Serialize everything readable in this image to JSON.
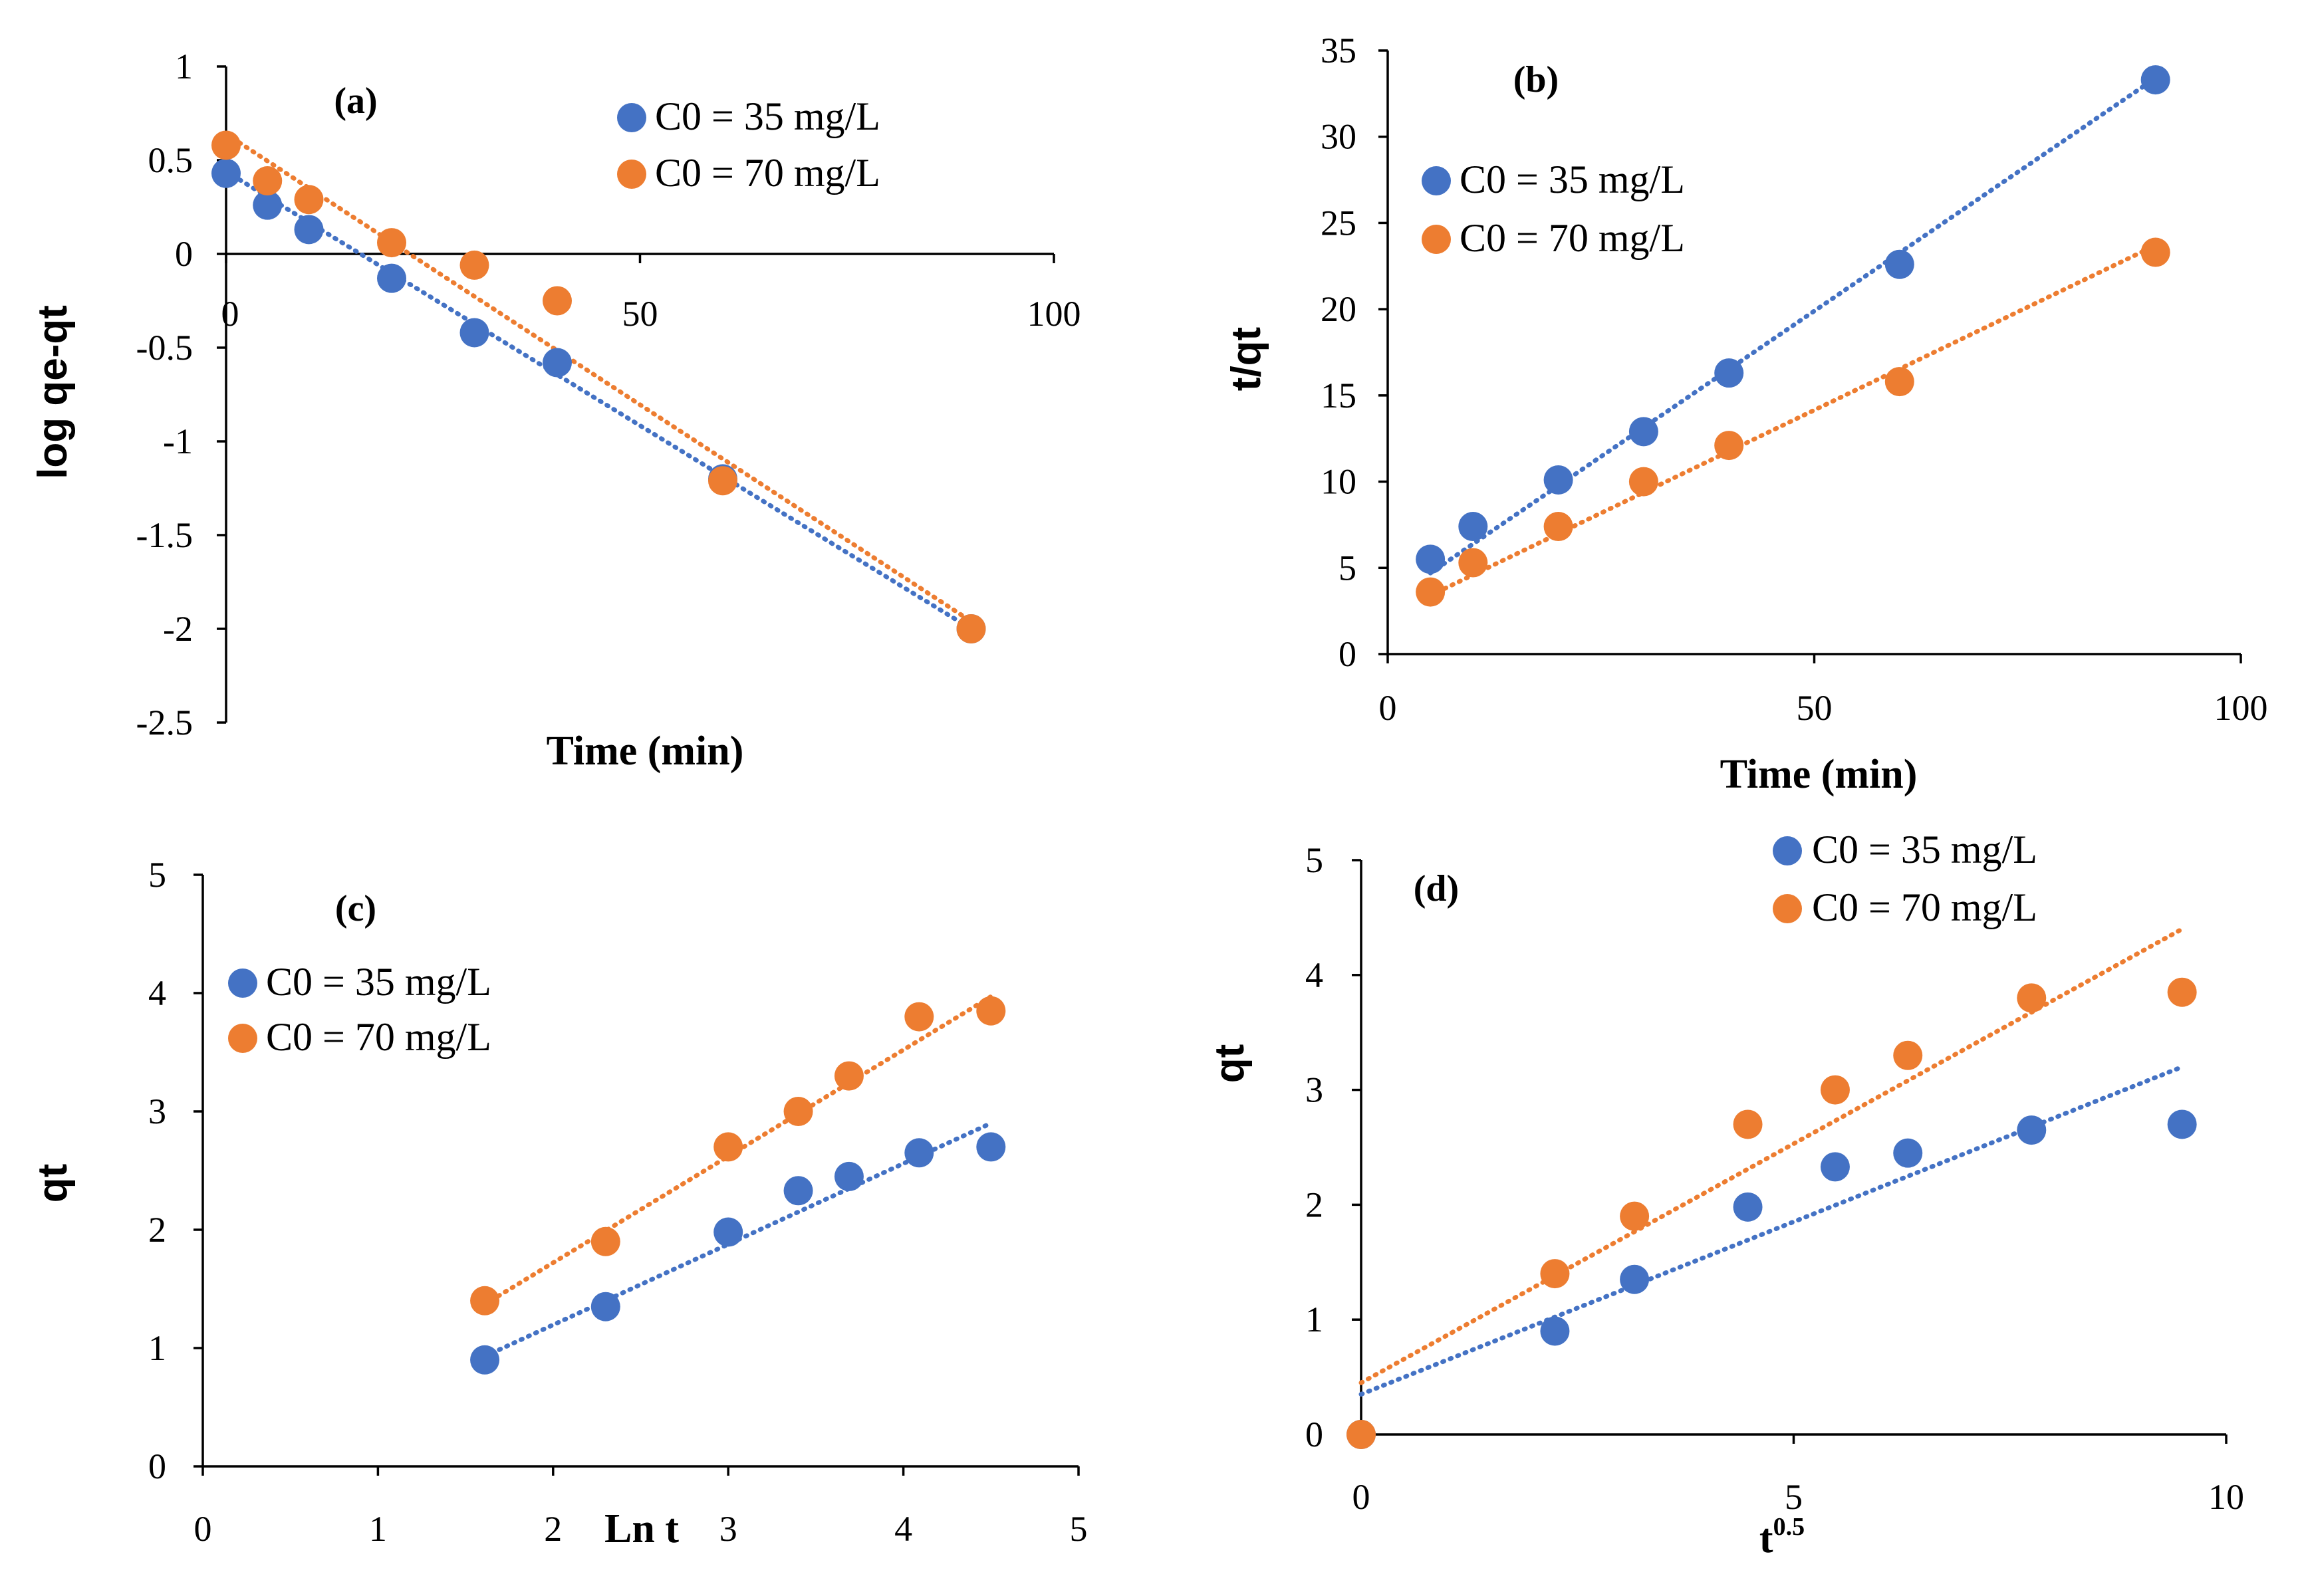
{
  "colors": {
    "series1": "#4472c4",
    "series2": "#ed7d31"
  },
  "chart_data": [
    {
      "type": "scatter",
      "title": "(a)",
      "xlabel": "Time (min)",
      "ylabel": "log qe-qt",
      "xlim": [
        0,
        100
      ],
      "ylim": [
        -2.5,
        1
      ],
      "xticks": [
        0,
        50,
        100
      ],
      "yticks": [
        1,
        0.5,
        0,
        -0.5,
        -1,
        -1.5,
        -2,
        -2.5
      ],
      "xaxis_at_zero": true,
      "legend_position": "top-right",
      "series": [
        {
          "name": "C0 = 35 mg/L",
          "x": [
            0,
            5,
            10,
            20,
            30,
            40,
            60,
            90
          ],
          "y": [
            0.43,
            0.26,
            0.13,
            -0.13,
            -0.42,
            -0.58,
            -1.2,
            -2.0
          ],
          "trendline": [
            [
              0,
              0.44
            ],
            [
              90,
              -2.0
            ]
          ]
        },
        {
          "name": "C0 = 70 mg/L",
          "x": [
            0,
            5,
            10,
            20,
            30,
            40,
            60,
            90
          ],
          "y": [
            0.58,
            0.39,
            0.29,
            0.06,
            -0.06,
            -0.25,
            -1.21,
            -2.0
          ],
          "trendline": [
            [
              0,
              0.64
            ],
            [
              90,
              -1.96
            ]
          ]
        }
      ]
    },
    {
      "type": "scatter",
      "title": "(b)",
      "xlabel": "Time (min)",
      "ylabel": "t/qt",
      "xlim": [
        0,
        100
      ],
      "ylim": [
        0,
        35
      ],
      "xticks": [
        0,
        50,
        100
      ],
      "yticks": [
        0,
        5,
        10,
        15,
        20,
        25,
        30,
        35
      ],
      "legend_position": "top-left",
      "series": [
        {
          "name": "C0 = 35 mg/L",
          "x": [
            5,
            10,
            20,
            30,
            40,
            60,
            90
          ],
          "y": [
            5.5,
            7.4,
            10.1,
            12.9,
            16.3,
            22.6,
            33.3
          ],
          "trendline": [
            [
              5,
              4.7
            ],
            [
              90,
              33.4
            ]
          ]
        },
        {
          "name": "C0 = 70 mg/L",
          "x": [
            5,
            10,
            20,
            30,
            40,
            60,
            90
          ],
          "y": [
            3.6,
            5.3,
            7.4,
            10.0,
            12.1,
            15.8,
            23.3
          ],
          "trendline": [
            [
              5,
              3.4
            ],
            [
              90,
              23.7
            ]
          ]
        }
      ]
    },
    {
      "type": "scatter",
      "title": "(c)",
      "xlabel": "Ln t",
      "ylabel": "qt",
      "xlim": [
        0,
        5
      ],
      "ylim": [
        0,
        5
      ],
      "xticks": [
        0,
        1,
        2,
        3,
        4,
        5
      ],
      "yticks": [
        0,
        1,
        2,
        3,
        4,
        5
      ],
      "legend_position": "top-left",
      "series": [
        {
          "name": "C0 = 35 mg/L",
          "x": [
            1.61,
            2.3,
            3.0,
            3.4,
            3.69,
            4.09,
            4.5
          ],
          "y": [
            0.9,
            1.35,
            1.98,
            2.33,
            2.45,
            2.65,
            2.7
          ],
          "trendline": [
            [
              1.61,
              0.93
            ],
            [
              4.5,
              2.9
            ]
          ]
        },
        {
          "name": "C0 = 70 mg/L",
          "x": [
            1.61,
            2.3,
            3.0,
            3.4,
            3.69,
            4.09,
            4.5
          ],
          "y": [
            1.4,
            1.9,
            2.7,
            3.0,
            3.3,
            3.8,
            3.85
          ],
          "trendline": [
            [
              1.61,
              1.37
            ],
            [
              4.5,
              3.97
            ]
          ]
        }
      ]
    },
    {
      "type": "scatter",
      "title": "(d)",
      "xlabel": "t",
      "xlabel_sup": "0.5",
      "ylabel": "qt",
      "xlim": [
        0,
        10
      ],
      "ylim": [
        0,
        5
      ],
      "xticks": [
        0,
        5,
        10
      ],
      "yticks": [
        0,
        1,
        2,
        3,
        4,
        5
      ],
      "legend_position": "top-right",
      "series": [
        {
          "name": "C0 = 35 mg/L",
          "x": [
            0,
            2.24,
            3.16,
            4.47,
            5.48,
            6.32,
            7.75,
            9.49
          ],
          "y": [
            0,
            0.9,
            1.35,
            1.98,
            2.33,
            2.45,
            2.65,
            2.7
          ],
          "trendline": [
            [
              0,
              0.35
            ],
            [
              9.49,
              3.2
            ]
          ]
        },
        {
          "name": "C0 = 70 mg/L",
          "x": [
            0,
            2.24,
            3.16,
            4.47,
            5.48,
            6.32,
            7.75,
            9.49
          ],
          "y": [
            0,
            1.4,
            1.9,
            2.7,
            3.0,
            3.3,
            3.8,
            3.85
          ],
          "trendline": [
            [
              0,
              0.45
            ],
            [
              9.49,
              4.4
            ]
          ]
        }
      ]
    }
  ]
}
